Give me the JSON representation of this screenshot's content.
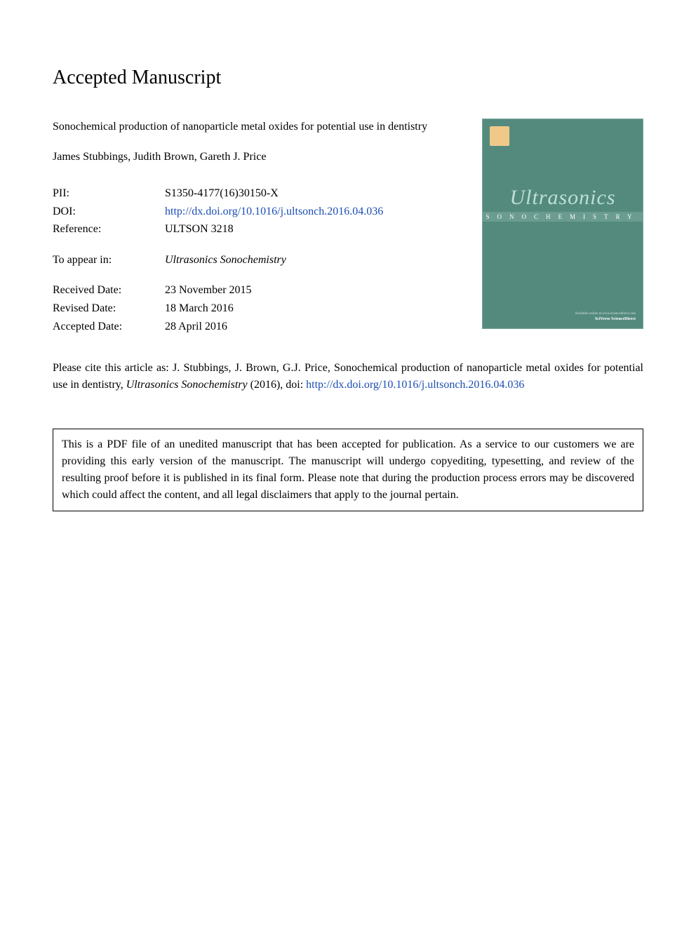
{
  "heading": "Accepted Manuscript",
  "article": {
    "title": "Sonochemical production of nanoparticle metal oxides for potential use in dentistry",
    "authors": "James Stubbings, Judith Brown, Gareth J. Price"
  },
  "meta": {
    "pii": {
      "label": "PII:",
      "value": "S1350-4177(16)30150-X"
    },
    "doi": {
      "label": "DOI:",
      "value": "http://dx.doi.org/10.1016/j.ultsonch.2016.04.036"
    },
    "reference": {
      "label": "Reference:",
      "value": "ULTSON 3218"
    },
    "appear": {
      "label": "To appear in:",
      "value": "Ultrasonics Sonochemistry"
    },
    "received": {
      "label": "Received Date:",
      "value": "23 November 2015"
    },
    "revised": {
      "label": "Revised Date:",
      "value": "18 March 2016"
    },
    "accepted": {
      "label": "Accepted Date:",
      "value": "28 April 2016"
    }
  },
  "cover": {
    "title": "Ultrasonics",
    "subtitle": "SONOCHEMISTRY",
    "header_text": "",
    "footer_right1": "Available online at www.sciencedirect.com",
    "footer_right2": "SciVerse ScienceDirect",
    "footer_left": "",
    "background_color": "#548a7e",
    "title_color": "#bde0d3",
    "subtitle_bg": "#6b9c90"
  },
  "citation": {
    "prefix": "Please cite this article as: J. Stubbings, J. Brown, G.J. Price, Sonochemical production of nanoparticle metal oxides for potential use in dentistry, ",
    "journal": "Ultrasonics Sonochemistry",
    "year": " (2016), doi: ",
    "doi_link": "http://dx.doi.org/10.1016/j.ultsonch.2016.04.036"
  },
  "disclaimer": "This is a PDF file of an unedited manuscript that has been accepted for publication. As a service to our customers we are providing this early version of the manuscript. The manuscript will undergo copyediting, typesetting, and review of the resulting proof before it is published in its final form. Please note that during the production process errors may be discovered which could affect the content, and all legal disclaimers that apply to the journal pertain.",
  "colors": {
    "link": "#1a4db3",
    "text": "#000000",
    "background": "#ffffff",
    "border": "#000000"
  },
  "typography": {
    "body_font": "Georgia, Times New Roman, serif",
    "heading_fontsize": 28,
    "body_fontsize": 16,
    "line_height": 1.5
  }
}
